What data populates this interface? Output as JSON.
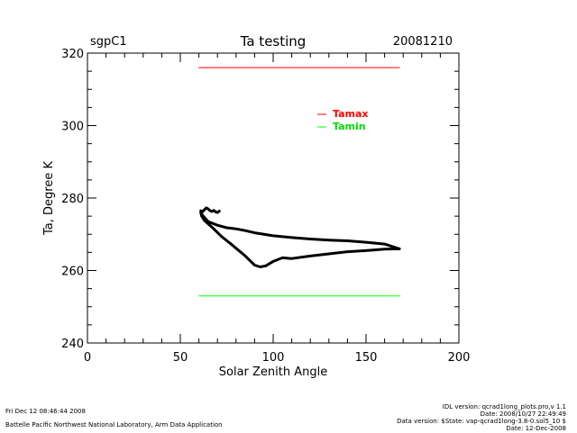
{
  "header": {
    "site": "sgpC1",
    "title": "Ta testing",
    "date": "20081210"
  },
  "footer": {
    "timestamp": "Fri Dec 12 08:46:44 2008",
    "org": "Battelle Pacific Northwest National Laboratory, Arm Data Application",
    "idl_version": "IDL version: qcrad1long_plots.pro,v 1.1",
    "file_date": "Date: 2008/10/27 22:49:49",
    "data_version": "Data version: $State: vap-qcrad1long-3.8-0.sol5_10 $",
    "run_date": "Date: 12-Dec-2008"
  },
  "chart_data": {
    "type": "line",
    "title": "Ta testing",
    "xlabel": "Solar Zenith Angle",
    "ylabel": "Ta, Degree K",
    "xlim": [
      0,
      200
    ],
    "ylim": [
      240,
      320
    ],
    "x_ticks": [
      0,
      50,
      100,
      150,
      200
    ],
    "y_ticks": [
      240,
      260,
      280,
      300,
      320
    ],
    "x_minor_step": 10,
    "y_minor_step": 5,
    "grid": false,
    "legend_position": "top-right",
    "colors": {
      "tamax": "#ff0000",
      "tamin": "#00ff00",
      "data": "#000000"
    },
    "series": [
      {
        "name": "Tamax",
        "color": "#ff0000",
        "x": [
          60,
          168
        ],
        "y": [
          316,
          316
        ]
      },
      {
        "name": "Tamin",
        "color": "#00ff00",
        "x": [
          60,
          168
        ],
        "y": [
          253,
          253
        ]
      },
      {
        "name": "",
        "color": "#000000",
        "x": [
          168,
          160,
          150,
          140,
          130,
          120,
          110,
          100,
          90,
          85,
          80,
          75,
          70,
          65,
          62,
          61,
          61.5,
          63,
          67,
          72,
          78,
          85,
          90,
          93,
          96,
          100,
          105,
          110,
          120,
          130,
          140,
          150,
          160,
          168
        ],
        "y": [
          266,
          267.3,
          267.8,
          268.2,
          268.4,
          268.7,
          269.1,
          269.6,
          270.4,
          271,
          271.5,
          271.8,
          272.5,
          273.5,
          275.2,
          276,
          275,
          273.8,
          272,
          269.5,
          267,
          264,
          261.5,
          261,
          261.3,
          262.5,
          263.5,
          263.3,
          264,
          264.6,
          265.2,
          265.5,
          265.9,
          266
        ]
      },
      {
        "name": "",
        "color": "#000000",
        "x": [
          61,
          62,
          63,
          64,
          65,
          66,
          67,
          68,
          69,
          70,
          71
        ],
        "y": [
          276.5,
          276.2,
          276.8,
          277.3,
          277,
          276.5,
          276.3,
          276.6,
          276.2,
          276.0,
          276.4
        ]
      }
    ]
  }
}
